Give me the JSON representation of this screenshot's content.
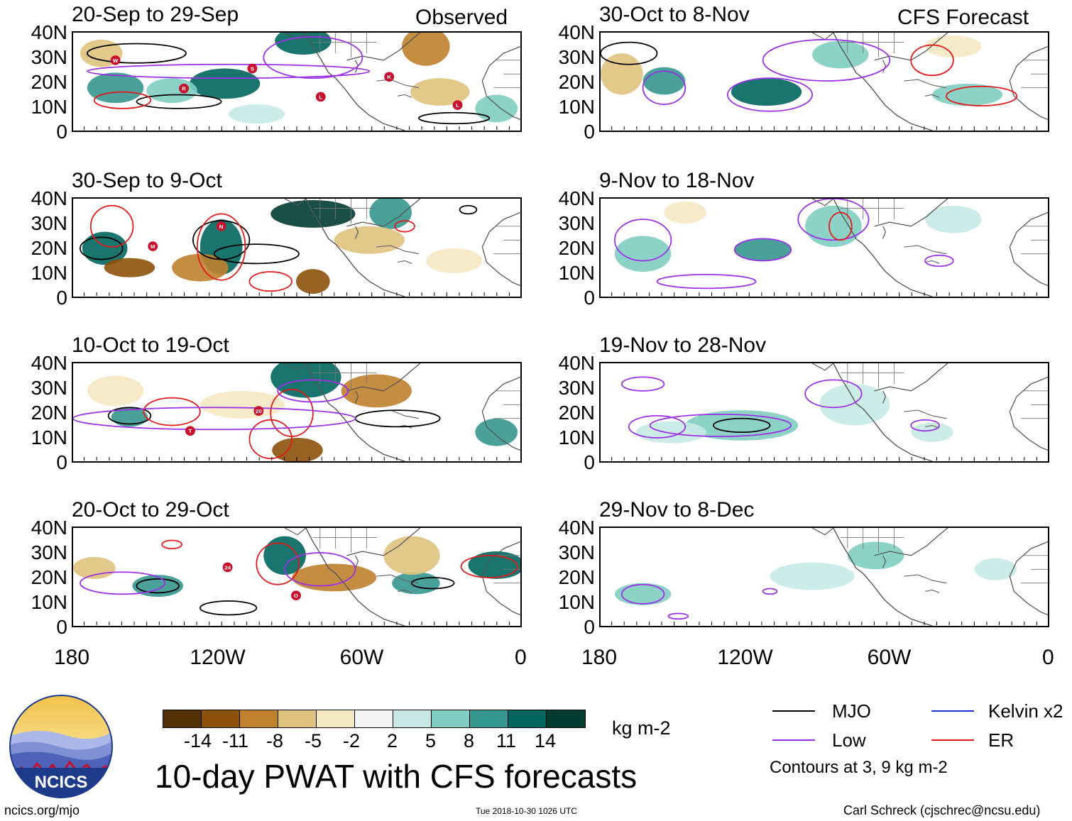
{
  "observed_label": "Observed",
  "forecast_label": "CFS Forecast",
  "y_axis_labels": [
    "40N",
    "30N",
    "20N",
    "10N",
    "0"
  ],
  "x_axis_labels": [
    "180",
    "120W",
    "60W",
    "0"
  ],
  "panels": [
    {
      "title": "20-Sep to 29-Sep",
      "kind": "observed",
      "storms": [
        "W",
        "R",
        "S",
        "L",
        "K",
        "L"
      ]
    },
    {
      "title": "30-Oct to 8-Nov",
      "kind": "forecast"
    },
    {
      "title": "30-Sep to 9-Oct",
      "kind": "observed",
      "storms": [
        "M",
        "N"
      ]
    },
    {
      "title": "9-Nov to 18-Nov",
      "kind": "forecast"
    },
    {
      "title": "10-Oct to 19-Oct",
      "kind": "observed",
      "storms": [
        "T",
        "20"
      ]
    },
    {
      "title": "19-Nov to 28-Nov",
      "kind": "forecast"
    },
    {
      "title": "20-Oct to 29-Oct",
      "kind": "observed",
      "storms": [
        "24",
        "O"
      ]
    },
    {
      "title": "29-Nov to 8-Dec",
      "kind": "forecast"
    }
  ],
  "colorbar": {
    "colors": [
      "#543005",
      "#8c510a",
      "#bf812d",
      "#dfc27d",
      "#f6e8c3",
      "#f5f5f5",
      "#c7eae5",
      "#80cdc1",
      "#35978f",
      "#01665e",
      "#003c30"
    ],
    "labels": [
      "-14",
      "-11",
      "-8",
      "-5",
      "-2",
      "2",
      "5",
      "8",
      "11",
      "14"
    ],
    "units": "kg m-2"
  },
  "title": "10-day PWAT with CFS forecasts",
  "legend": {
    "items": [
      {
        "label": "MJO",
        "color": "#000000"
      },
      {
        "label": "Kelvin x2",
        "color": "#1f2fd6"
      },
      {
        "label": "Low",
        "color": "#9b30e6"
      },
      {
        "label": "ER",
        "color": "#e01a1a"
      }
    ],
    "note": "Contours at 3, 9 kg m-2"
  },
  "logo_text": "NCICS",
  "footer": {
    "left": "ncics.org/mjo",
    "center": "Tue 2018-10-30 1026 UTC",
    "right": "Carl Schreck (cjschrec@ncsu.edu)"
  }
}
